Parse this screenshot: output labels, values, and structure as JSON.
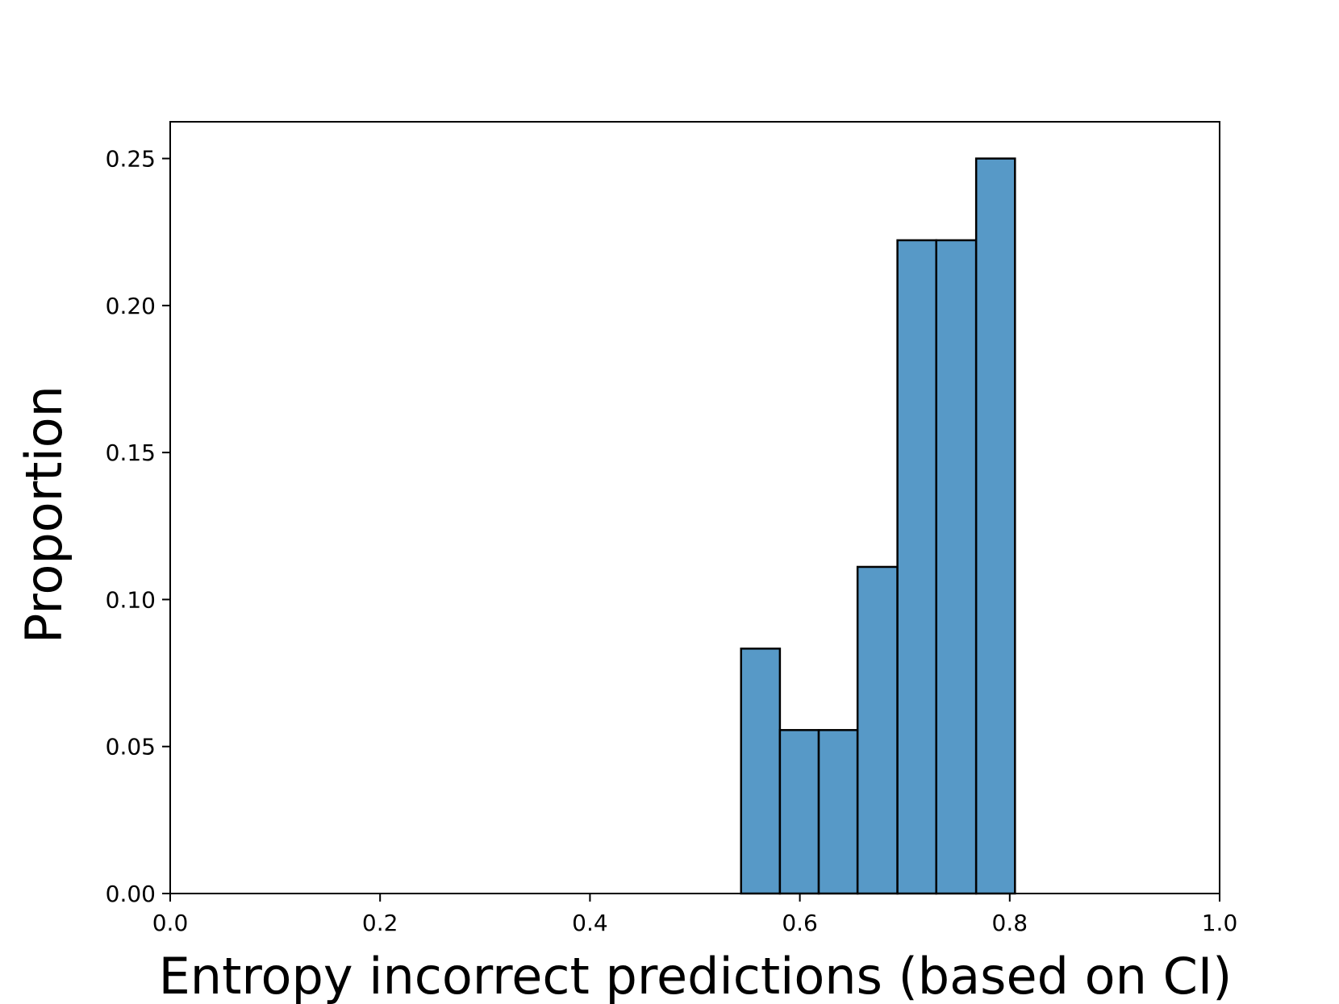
{
  "chart_data": {
    "type": "histogram",
    "x_label": "Entropy incorrect predictions (based on CI)",
    "y_label": "Proportion",
    "bins": [
      0.544,
      0.581,
      0.618,
      0.655,
      0.693,
      0.73,
      0.768,
      0.805
    ],
    "values": [
      0.0833,
      0.0556,
      0.0556,
      0.1111,
      0.2222,
      0.2222,
      0.25
    ],
    "color": "#5799c7",
    "edge_color": "#000000",
    "xlim": [
      0,
      1
    ],
    "ylim": [
      0,
      0.2625
    ],
    "xticks": [
      {
        "value": 0,
        "label": "0.0"
      },
      0.2,
      0.4,
      0.6,
      0.8,
      {
        "value": 1,
        "label": "1.0"
      }
    ],
    "yticks": [
      {
        "value": 0,
        "label": "0.00"
      },
      0.05,
      {
        "value": 0.1,
        "label": "0.10"
      },
      0.15,
      {
        "value": 0.2,
        "label": "0.20"
      },
      0.25
    ],
    "grid": false
  }
}
